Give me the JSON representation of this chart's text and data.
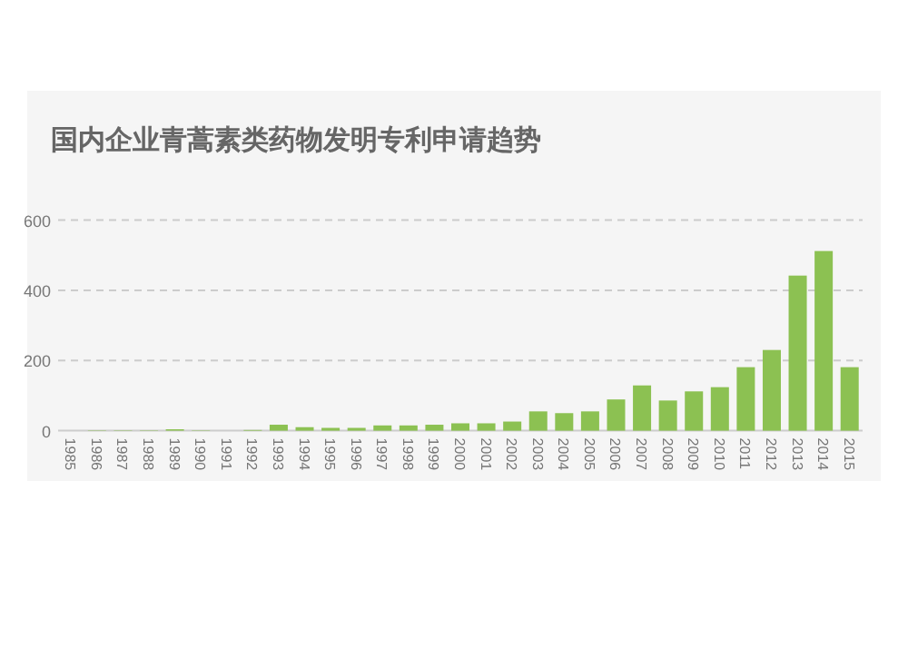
{
  "chart_data": {
    "type": "bar",
    "title": "国内企业青蒿素类药物发明专利申请趋势",
    "categories": [
      "1985",
      "1986",
      "1987",
      "1988",
      "1989",
      "1990",
      "1991",
      "1992",
      "1993",
      "1994",
      "1995",
      "1996",
      "1997",
      "1998",
      "1999",
      "2000",
      "2001",
      "2002",
      "2003",
      "2004",
      "2005",
      "2006",
      "2007",
      "2008",
      "2009",
      "2010",
      "2011",
      "2012",
      "2013",
      "2014",
      "2015"
    ],
    "values": [
      0,
      1,
      1,
      1,
      4,
      1,
      0,
      2,
      17,
      10,
      8,
      8,
      15,
      15,
      17,
      21,
      21,
      26,
      55,
      50,
      55,
      89,
      129,
      86,
      112,
      124,
      181,
      230,
      442,
      512,
      181
    ],
    "color": "#8cc152",
    "ylim": [
      0,
      600
    ],
    "yticks": [
      0,
      200,
      400,
      600
    ],
    "grid": "y"
  }
}
